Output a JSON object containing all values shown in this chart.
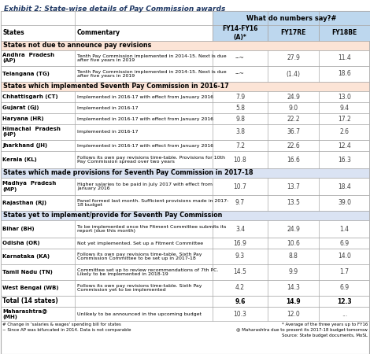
{
  "title": "Exhibit 2: State-wise details of Pay Commission awards",
  "header_cols": [
    "States",
    "Commentary",
    "FY14-FY16\n(A)*",
    "FY17RE",
    "FY18BE"
  ],
  "sub_header": "What do numbers say?#",
  "section_headers": [
    {
      "label": "States not due to announce pay revisions",
      "row": 0,
      "color": "#fce4d6"
    },
    {
      "label": "States which implemented Seventh Pay Commission in 2016-17",
      "row": 3,
      "color": "#fce4d6"
    },
    {
      "label": "States which made provisions for Seventh Pay Commission in 2017-18",
      "row": 10,
      "color": "#dae3f3"
    },
    {
      "label": "States yet to implement/provide for Seventh Pay Commission",
      "row": 13,
      "color": "#dae3f3"
    }
  ],
  "rows": [
    {
      "state": "Andhra  Pradesh\n(AP)",
      "commentary": "Tenth Pay Commission implemented in 2014-15. Next is due\nafter five years in 2019",
      "fy14": "--~",
      "fy17": "27.9",
      "fy18": "11.4",
      "section": 0
    },
    {
      "state": "Telangana (TG)",
      "commentary": "Tenth Pay Commission implemented in 2014-15. Next is due\nafter five years in 2019",
      "fy14": "--~",
      "fy17": "(1.4)",
      "fy18": "18.6",
      "section": 0
    },
    {
      "state": "Chhattisgarh (CT)",
      "commentary": "Implemented in 2016-17 with effect from January 2016",
      "fy14": "7.9",
      "fy17": "24.9",
      "fy18": "13.0",
      "section": 1
    },
    {
      "state": "Gujarat (GJ)",
      "commentary": "Implemented in 2016-17",
      "fy14": "5.8",
      "fy17": "9.0",
      "fy18": "9.4",
      "section": 1
    },
    {
      "state": "Haryana (HR)",
      "commentary": "Implemented in 2016-17 with effect from January 2016",
      "fy14": "9.8",
      "fy17": "22.2",
      "fy18": "17.2",
      "section": 1
    },
    {
      "state": "Himachal  Pradesh\n(HP)",
      "commentary": "Implemented in 2016-17",
      "fy14": "3.8",
      "fy17": "36.7",
      "fy18": "2.6",
      "section": 1
    },
    {
      "state": "Jharkhand (JH)",
      "commentary": "Implemented in 2016-17 with effect from January 2016",
      "fy14": "7.2",
      "fy17": "22.6",
      "fy18": "12.4",
      "section": 1
    },
    {
      "state": "Kerala (KL)",
      "commentary": "Follows its own pay revisions time-table. Provisions for 10th\nPay Commission spread over two years",
      "fy14": "10.8",
      "fy17": "16.6",
      "fy18": "16.3",
      "section": 1
    },
    {
      "state": "Madhya  Pradesh\n(MP)",
      "commentary": "Higher salaries to be paid in July 2017 with effect from\nJanuary 2016",
      "fy14": "10.7",
      "fy17": "13.7",
      "fy18": "18.4",
      "section": 2
    },
    {
      "state": "Rajasthan (RJ)",
      "commentary": "Panel formed last month. Sufficient provisions made in 2017-\n18 budget",
      "fy14": "9.7",
      "fy17": "13.5",
      "fy18": "39.0",
      "section": 2
    },
    {
      "state": "Bihar (BH)",
      "commentary": "To be implemented once the Fitment Committee submits its\nreport (due this month)",
      "fy14": "3.4",
      "fy17": "24.9",
      "fy18": "1.4",
      "section": 3
    },
    {
      "state": "Odisha (OR)",
      "commentary": "Not yet implemented. Set up a Fitment Committee",
      "fy14": "16.9",
      "fy17": "10.6",
      "fy18": "6.9",
      "section": 3
    },
    {
      "state": "Karnataka (KA)",
      "commentary": "Follows its own pay revisions time-table. Sixth Pay\nCommission Committee to be set up in 2017-18",
      "fy14": "9.3",
      "fy17": "8.8",
      "fy18": "14.0",
      "section": 3
    },
    {
      "state": "Tamil Nadu (TN)",
      "commentary": "Committee set up to review recommendations of 7th PC.\nLikely to be implemented in 2018-19",
      "fy14": "14.5",
      "fy17": "9.9",
      "fy18": "1.7",
      "section": 3
    },
    {
      "state": "West Bengal (WB)",
      "commentary": "Follows its own pay revisions time-table. Sixth Pay\nCommission yet to be implemented",
      "fy14": "4.2",
      "fy17": "14.3",
      "fy18": "6.9",
      "section": 3
    },
    {
      "state": "Total (14 states)",
      "commentary": "",
      "fy14": "9.6",
      "fy17": "14.9",
      "fy18": "12.3",
      "section": 4
    },
    {
      "state": "Maharashtra@\n(MH)",
      "commentary": "Unlikely to be announced in the upcoming budget",
      "fy14": "10.3",
      "fy17": "12.0",
      "fy18": "...",
      "section": 5
    }
  ],
  "footnotes": [
    "# Change in 'salaries & wages' spending bill for states",
    "~ Since AP was bifurcated in 2014. Data is not comparable"
  ],
  "footnotes_right": [
    "* Average of the three years up to FY16",
    "@ Maharashtra due to present its 2017-18 budget tomorrow",
    "Source: State budget documents, MoSL"
  ],
  "section_colors": [
    "#fce4d6",
    "#fce4d6",
    "#dae3f3",
    "#dae3f3",
    "#ffffff",
    "#ffffff"
  ],
  "header_bg": "#bdd7ee",
  "title_color": "#1f3864",
  "border_color": "#999999"
}
